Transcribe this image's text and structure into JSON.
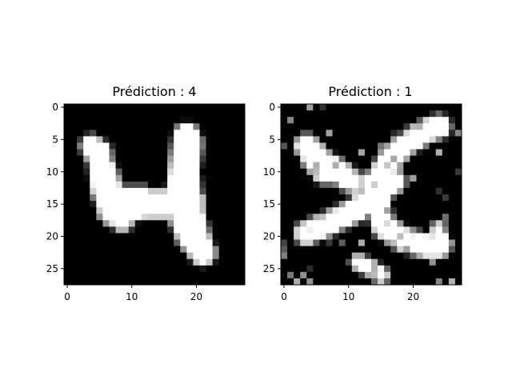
{
  "chart_data": [
    {
      "type": "heatmap",
      "title": "Prédiction : 4",
      "xticks": [
        0,
        10,
        20
      ],
      "yticks": [
        0,
        5,
        10,
        15,
        20,
        25
      ],
      "xlim": [
        -0.5,
        27.5
      ],
      "ylim": [
        27.5,
        -0.5
      ],
      "colormap": "gray",
      "grid": false,
      "size": [
        28,
        28
      ],
      "strokes": [
        {
          "pts": [
            [
              3.8,
              6.0
            ],
            [
              6.0,
              10.0
            ],
            [
              7.5,
              15.5
            ],
            [
              8.5,
              17.5
            ]
          ],
          "w": 1.3
        },
        {
          "pts": [
            [
              5.0,
              7.0
            ],
            [
              5.5,
              12.5
            ],
            [
              7.0,
              16.5
            ]
          ],
          "w": 1.4
        },
        {
          "pts": [
            [
              7.0,
              16.0
            ],
            [
              12.0,
              15.0
            ],
            [
              16.0,
              15.0
            ],
            [
              19.0,
              14.5
            ]
          ],
          "w": 1.8
        },
        {
          "pts": [
            [
              9.0,
              13.5
            ],
            [
              12.0,
              13.5
            ]
          ],
          "w": 0.8
        },
        {
          "pts": [
            [
              18.5,
              4.5
            ],
            [
              18.0,
              8.0
            ],
            [
              17.5,
              12.0
            ],
            [
              17.8,
              17.0
            ],
            [
              19.0,
              20.0
            ],
            [
              21.0,
              22.5
            ]
          ],
          "w": 1.6
        },
        {
          "pts": [
            [
              19.5,
              5.5
            ],
            [
              19.0,
              10.0
            ],
            [
              19.5,
              15.0
            ],
            [
              20.5,
              19.5
            ],
            [
              21.5,
              22.5
            ]
          ],
          "w": 1.0
        }
      ],
      "noise": 0,
      "seed": 11
    },
    {
      "type": "heatmap",
      "title": "Prédiction : 1",
      "xticks": [
        0,
        10,
        20
      ],
      "yticks": [
        0,
        5,
        10,
        15,
        20,
        25
      ],
      "xlim": [
        -0.5,
        27.5
      ],
      "ylim": [
        27.5,
        -0.5
      ],
      "colormap": "gray",
      "grid": false,
      "size": [
        28,
        28
      ],
      "strokes": [
        {
          "pts": [
            [
              3.5,
              6.0
            ],
            [
              6.0,
              8.5
            ],
            [
              8.5,
              10.0
            ],
            [
              10.5,
              11.5
            ]
          ],
          "w": 1.4
        },
        {
          "pts": [
            [
              4.0,
              8.0
            ],
            [
              6.0,
              10.5
            ],
            [
              8.0,
              10.5
            ]
          ],
          "w": 0.9
        },
        {
          "pts": [
            [
              3.5,
              19.5
            ],
            [
              7.0,
              18.0
            ],
            [
              11.0,
              16.0
            ],
            [
              14.0,
              13.5
            ],
            [
              17.0,
              11.5
            ]
          ],
          "w": 1.4
        },
        {
          "pts": [
            [
              14.0,
              12.0
            ],
            [
              16.5,
              8.0
            ],
            [
              19.0,
              5.5
            ],
            [
              22.5,
              3.5
            ],
            [
              24.0,
              3.0
            ]
          ],
          "w": 1.4
        },
        {
          "pts": [
            [
              15.0,
              12.5
            ],
            [
              14.5,
              15.5
            ],
            [
              15.5,
              18.5
            ],
            [
              18.5,
              20.5
            ],
            [
              22.0,
              21.5
            ],
            [
              24.0,
              21.5
            ]
          ],
          "w": 1.4
        },
        {
          "pts": [
            [
              24.0,
              19.0
            ],
            [
              24.5,
              21.5
            ]
          ],
          "w": 0.8
        },
        {
          "pts": [
            [
              11.5,
              24.0
            ],
            [
              13.5,
              25.0
            ],
            [
              15.0,
              26.0
            ]
          ],
          "w": 0.8
        }
      ],
      "noise": 0.06,
      "seed": 7
    }
  ]
}
